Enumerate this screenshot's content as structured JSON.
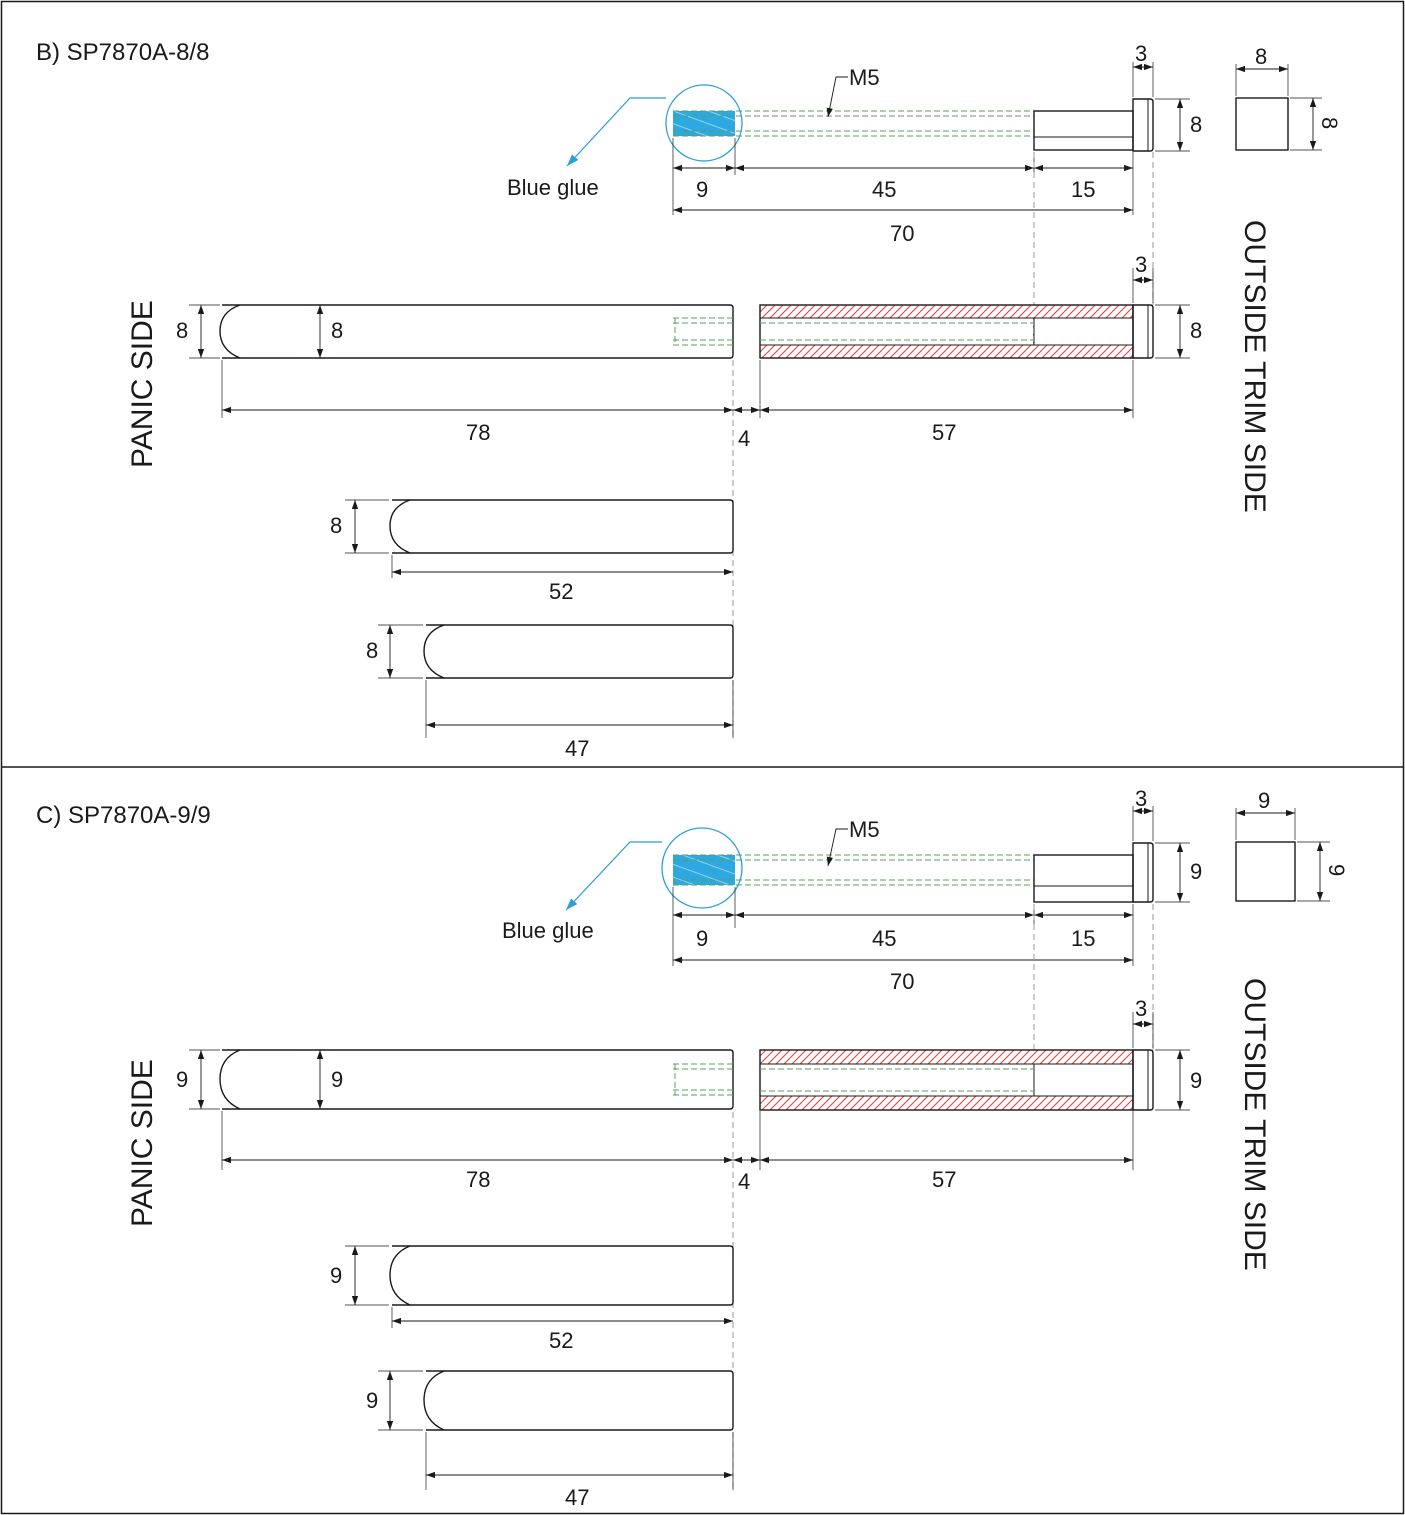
{
  "colors": {
    "outline": "#1a1a1a",
    "glue": "#2ea8e0",
    "hatch": "#e23c3c",
    "thread_hidden": "#5aa05a",
    "leader": "#2c9fd6"
  },
  "sections": [
    {
      "title": "B)  SP7870A-8/8",
      "label_m5": "M5",
      "label_glue": "Blue glue",
      "dims": {
        "top_head": "3",
        "spindle_h": "8",
        "square_w": "8",
        "square_h": "8",
        "glue_len": "9",
        "thread_len": "45",
        "shank_len": "15",
        "total_len": "70",
        "mid_head": "3",
        "panic_h": "8",
        "panic_h2": "8",
        "outside_h": "8",
        "panic_len": "78",
        "gap": "4",
        "outside_len": "57",
        "bar2_h": "8",
        "bar2_len": "52",
        "bar3_h": "8",
        "bar3_len": "47"
      },
      "panic_side": "PANIC SIDE",
      "outside_side": "OUTSIDE TRIM SIDE"
    },
    {
      "title": "C)  SP7870A-9/9",
      "label_m5": "M5",
      "label_glue": "Blue glue",
      "dims": {
        "top_head": "3",
        "spindle_h": "9",
        "square_w": "9",
        "square_h": "9",
        "glue_len": "9",
        "thread_len": "45",
        "shank_len": "15",
        "total_len": "70",
        "mid_head": "3",
        "panic_h": "9",
        "panic_h2": "9",
        "outside_h": "9",
        "panic_len": "78",
        "gap": "4",
        "outside_len": "57",
        "bar2_h": "9",
        "bar2_len": "52",
        "bar3_h": "9",
        "bar3_len": "47"
      },
      "panic_side": "PANIC SIDE",
      "outside_side": "OUTSIDE TRIM SIDE"
    }
  ]
}
